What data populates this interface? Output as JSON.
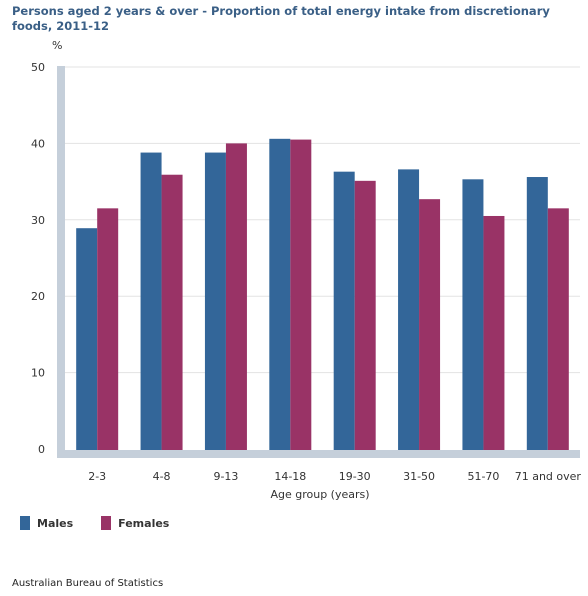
{
  "chart_data": {
    "type": "bar",
    "title": "Persons aged 2 years & over - Proportion of total energy intake from discretionary foods, 2011-12",
    "ylabel": "%",
    "xlabel": "Age group (years)",
    "ylim": [
      0,
      50
    ],
    "yticks": [
      0,
      10,
      20,
      30,
      40,
      50
    ],
    "categories": [
      "2-3",
      "4-8",
      "9-13",
      "14-18",
      "19-30",
      "31-50",
      "51-70",
      "71 and over"
    ],
    "series": [
      {
        "name": "Males",
        "color": "#336699",
        "values": [
          28.9,
          38.8,
          38.8,
          40.6,
          36.3,
          36.6,
          35.3,
          35.6
        ]
      },
      {
        "name": "Females",
        "color": "#993366",
        "values": [
          31.5,
          35.9,
          40.0,
          40.5,
          35.1,
          32.7,
          30.5,
          31.5
        ]
      }
    ],
    "grid": true,
    "legend_position": "bottom-left"
  },
  "source": "Australian Bureau of Statistics"
}
